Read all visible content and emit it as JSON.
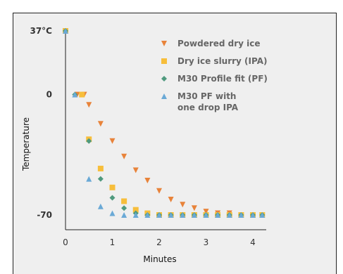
{
  "chart_data": {
    "type": "scatter",
    "xlabel": "Minutes",
    "ylabel": "Temperature",
    "xlim": [
      0,
      4.2
    ],
    "ylim": [
      -73,
      40
    ],
    "x_ticks": [
      "0",
      "1",
      "2",
      "3",
      "4"
    ],
    "y_ticks": [
      "37°C",
      "0",
      "-70"
    ],
    "series": [
      {
        "name": "Powdered dry ice",
        "marker": "triangle-down",
        "color": "#e8833a",
        "x": [
          0.0,
          0.25,
          0.4,
          0.5,
          0.75,
          1.0,
          1.25,
          1.5,
          1.75,
          2.0,
          2.25,
          2.5,
          2.75,
          3.0,
          3.25,
          3.5,
          3.75,
          4.0,
          4.2
        ],
        "y": [
          37,
          0,
          0,
          -6,
          -17,
          -27,
          -36,
          -44,
          -50,
          -56,
          -61,
          -64,
          -66,
          -68,
          -69,
          -69,
          -70,
          -70,
          -70
        ]
      },
      {
        "name": "Dry ice slurry (IPA)",
        "marker": "square",
        "color": "#f7be3b",
        "x": [
          0.0,
          0.35,
          0.5,
          0.75,
          1.0,
          1.25,
          1.5,
          1.75,
          2.0,
          2.25,
          2.5,
          2.75,
          3.0,
          3.25,
          3.5,
          3.75,
          4.0,
          4.2
        ],
        "y": [
          37,
          0,
          -26,
          -43,
          -54,
          -62,
          -67,
          -69,
          -70,
          -70,
          -70,
          -70,
          -70,
          -70,
          -70,
          -70,
          -70,
          -70
        ]
      },
      {
        "name": "M30 Profile fit (PF)",
        "marker": "diamond",
        "color": "#4f9a7e",
        "x": [
          0.0,
          0.2,
          0.5,
          0.75,
          1.0,
          1.25,
          1.5,
          1.75,
          2.0,
          2.25,
          2.5,
          2.75,
          3.0,
          3.25,
          3.5,
          3.75,
          4.0,
          4.2
        ],
        "y": [
          37,
          0,
          -27,
          -49,
          -60,
          -66,
          -69,
          -70,
          -70,
          -70,
          -70,
          -70,
          -70,
          -70,
          -70,
          -70,
          -70,
          -70
        ]
      },
      {
        "name": "M30 PF with one drop IPA",
        "legend_lines": [
          "M30 PF with",
          "one drop IPA"
        ],
        "marker": "triangle-up",
        "color": "#6aa9d6",
        "x": [
          0.0,
          0.2,
          0.5,
          0.75,
          1.0,
          1.25,
          1.5,
          1.75,
          2.0,
          2.25,
          2.5,
          2.75,
          3.0,
          3.25,
          3.5,
          3.75,
          4.0,
          4.2
        ],
        "y": [
          37,
          0,
          -49,
          -65,
          -69,
          -70,
          -70,
          -70,
          -70,
          -70,
          -70,
          -70,
          -70,
          -70,
          -70,
          -70,
          -70,
          -70
        ]
      }
    ],
    "legend_position": "top-right",
    "grid": false
  }
}
